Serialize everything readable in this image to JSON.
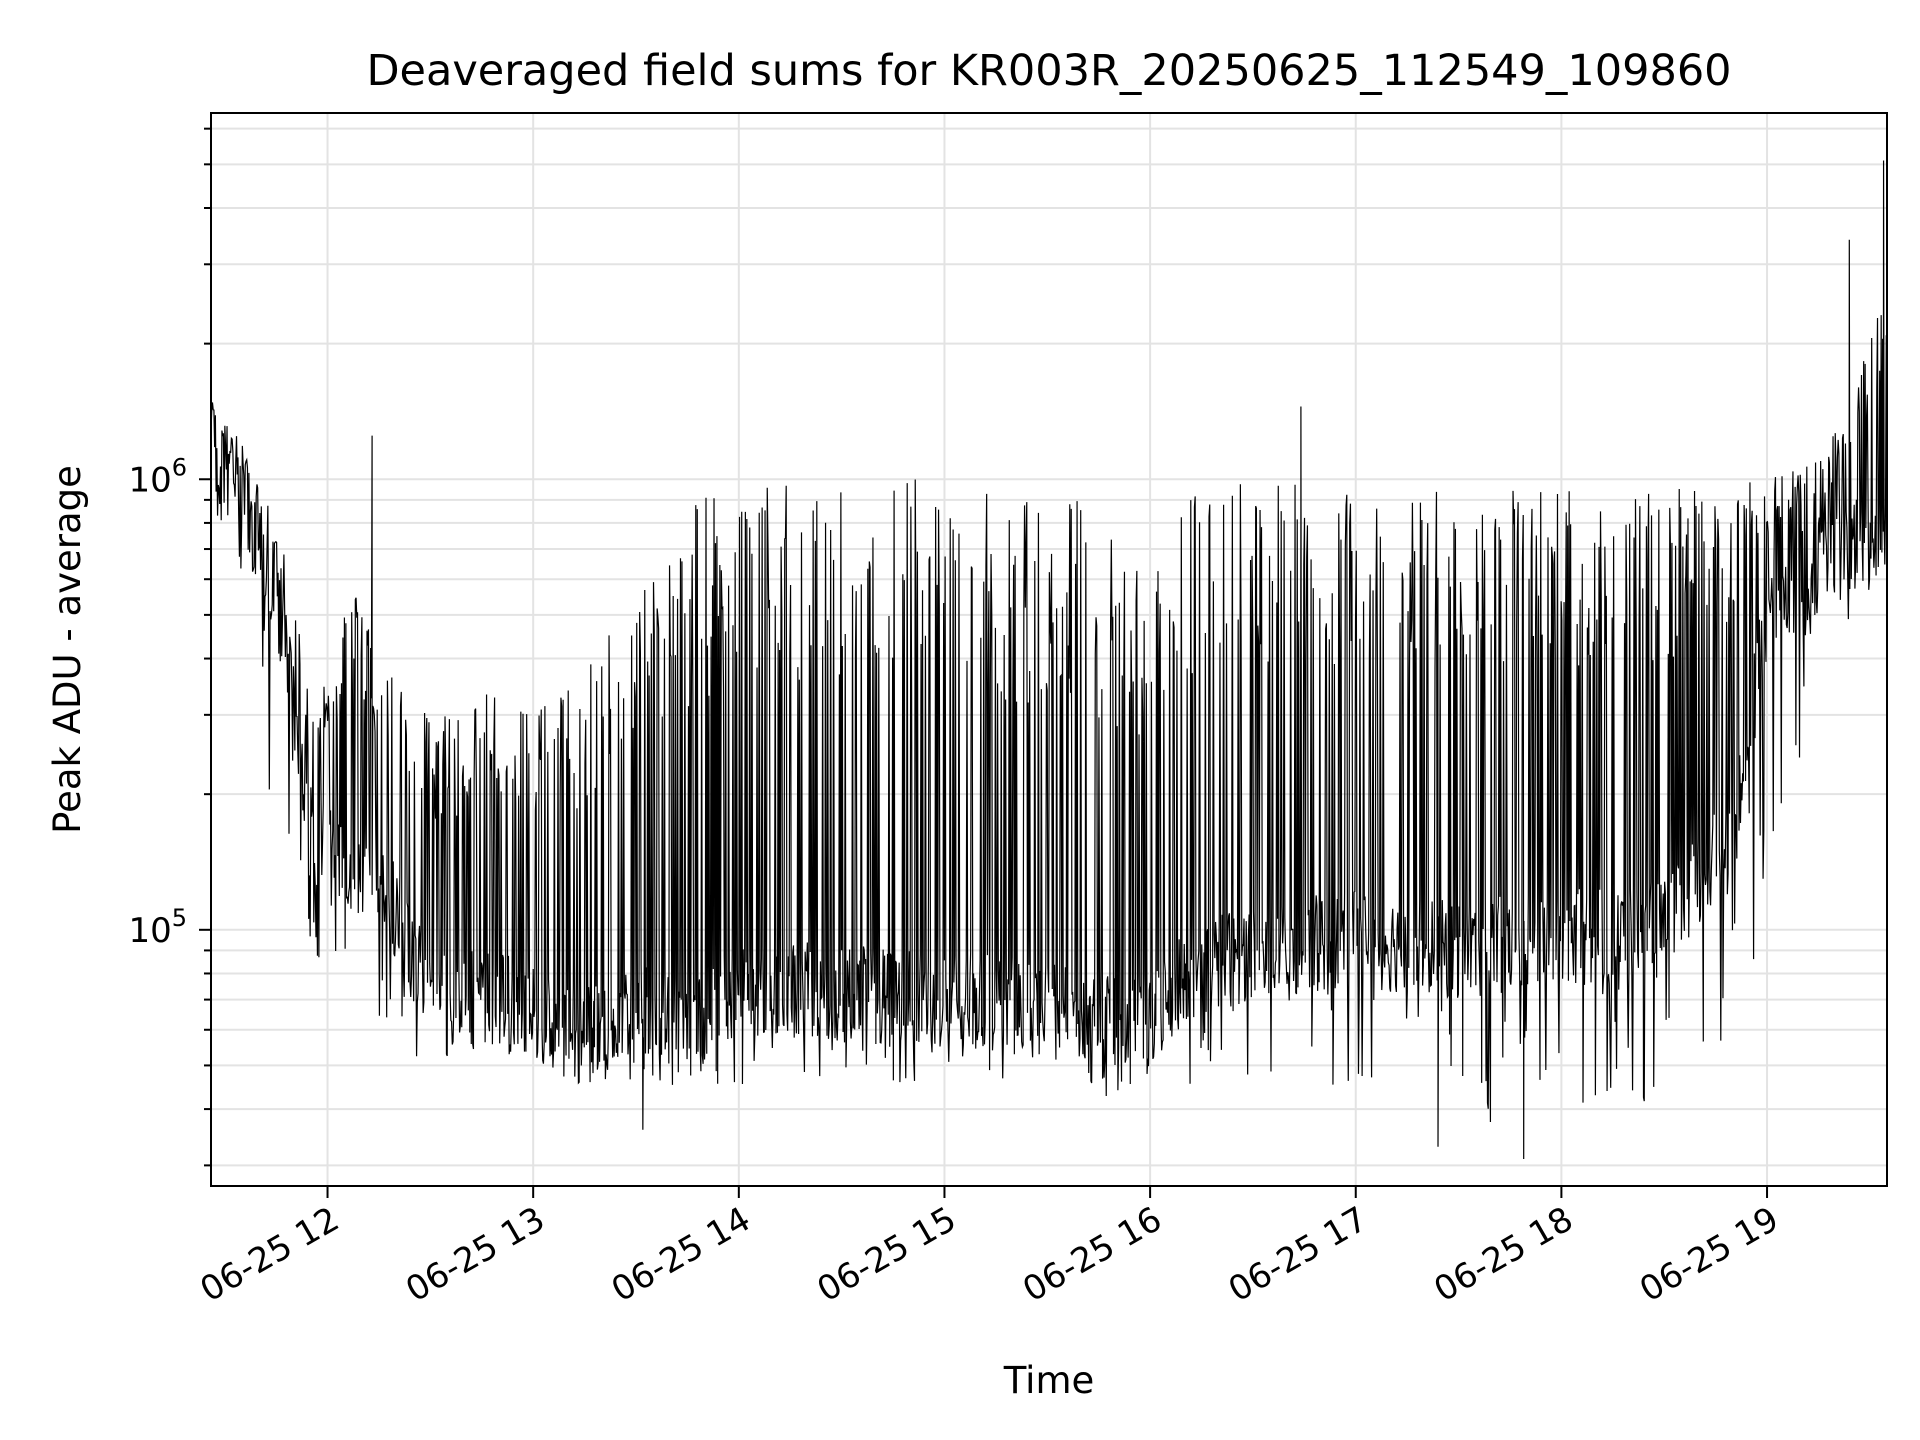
{
  "chart_data": {
    "type": "line",
    "title": "Deaveraged field sums for KR003R_20250625_112549_109860",
    "xlabel": "Time",
    "ylabel": "Peak ADU - average",
    "yscale": "log",
    "ylim": [
      27000,
      6500000
    ],
    "xlim": [
      "2025-06-25 11:26",
      "2025-06-25 19:35"
    ],
    "grid": true,
    "line_color": "#000000",
    "x_ticks": [
      {
        "value": "2025-06-25 12:00",
        "label": "06-25 12"
      },
      {
        "value": "2025-06-25 13:00",
        "label": "06-25 13"
      },
      {
        "value": "2025-06-25 14:00",
        "label": "06-25 14"
      },
      {
        "value": "2025-06-25 15:00",
        "label": "06-25 15"
      },
      {
        "value": "2025-06-25 16:00",
        "label": "06-25 16"
      },
      {
        "value": "2025-06-25 17:00",
        "label": "06-25 17"
      },
      {
        "value": "2025-06-25 18:00",
        "label": "06-25 18"
      },
      {
        "value": "2025-06-25 19:00",
        "label": "06-25 19"
      }
    ],
    "y_ticks": [
      {
        "value": 100000,
        "base": "10",
        "exp": "5"
      },
      {
        "value": 1000000,
        "base": "10",
        "exp": "6"
      }
    ],
    "series": [
      {
        "envelope": {
          "time": [
            "2025-06-25 11:26",
            "2025-06-25 11:36",
            "2025-06-25 11:46",
            "2025-06-25 11:56",
            "2025-06-25 12:06",
            "2025-06-25 12:16",
            "2025-06-25 12:30",
            "2025-06-25 12:45",
            "2025-06-25 13:00",
            "2025-06-25 13:15",
            "2025-06-25 13:30",
            "2025-06-25 13:45",
            "2025-06-25 14:00",
            "2025-06-25 14:30",
            "2025-06-25 15:00",
            "2025-06-25 15:20",
            "2025-06-25 15:40",
            "2025-06-25 16:00",
            "2025-06-25 16:10",
            "2025-06-25 16:30",
            "2025-06-25 17:00",
            "2025-06-25 17:30",
            "2025-06-25 18:00",
            "2025-06-25 18:30",
            "2025-06-25 18:50",
            "2025-06-25 19:00",
            "2025-06-25 19:15",
            "2025-06-25 19:25",
            "2025-06-25 19:35"
          ],
          "baseline": [
            1200000,
            900000,
            520000,
            160000,
            130000,
            130000,
            70000,
            72000,
            65000,
            58000,
            68000,
            60000,
            75000,
            72000,
            70000,
            68000,
            65000,
            62000,
            80000,
            90000,
            95000,
            90000,
            95000,
            100000,
            160000,
            500000,
            650000,
            700000,
            800000
          ],
          "peak": [
            1500000,
            1100000,
            800000,
            300000,
            600000,
            400000,
            300000,
            350000,
            300000,
            400000,
            600000,
            900000,
            1000000,
            1000000,
            1000000,
            900000,
            900000,
            600000,
            1000000,
            1000000,
            950000,
            950000,
            950000,
            950000,
            1000000,
            1000000,
            1100000,
            1500000,
            3000000
          ],
          "trough": [
            850000,
            500000,
            130000,
            90000,
            60000,
            55000,
            50000,
            50000,
            52000,
            50000,
            40000,
            45000,
            45000,
            45000,
            45000,
            45000,
            42000,
            40000,
            45000,
            45000,
            45000,
            35000,
            40000,
            42000,
            50000,
            100000,
            400000,
            500000,
            600000
          ]
        }
      }
    ],
    "extremes": [
      {
        "time": "2025-06-25 17:49",
        "value": 31000
      },
      {
        "time": "2025-06-25 19:34",
        "value": 5100000
      },
      {
        "time": "2025-06-25 19:24",
        "value": 3400000
      },
      {
        "time": "2025-06-25 16:44",
        "value": 1450000
      },
      {
        "time": "2025-06-25 12:13",
        "value": 1250000
      },
      {
        "time": "2025-06-25 17:24",
        "value": 33000
      },
      {
        "time": "2025-06-25 13:32",
        "value": 36000
      }
    ]
  }
}
